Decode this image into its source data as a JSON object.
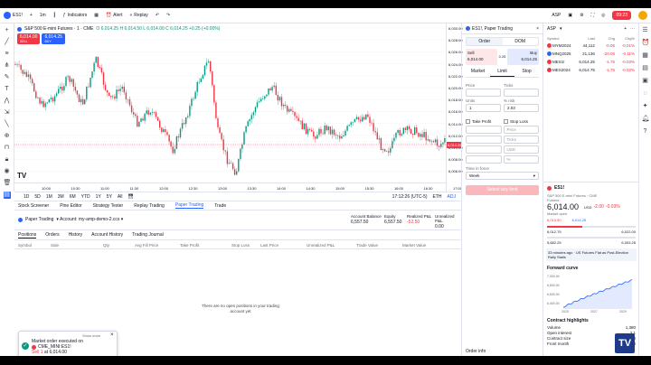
{
  "topbar": {
    "symbol": "ES1!",
    "interval": "1m",
    "indicators": "Indicators",
    "alert": "Alert",
    "replay": "Replay",
    "layout": "ASP",
    "time_pill": "09:23"
  },
  "chart": {
    "title": "S&P 500 E-mini Futures · 1 · CME",
    "ohlc": "O 6,014.25 H 6,014.50 L 6,014.00 C 6,014.25 +0.25 (+0.00%)",
    "sell_price": "6,014.00",
    "buy_price": "6,014.25",
    "sell_label": "SELL",
    "buy_label": "BUY",
    "price_ticks": [
      "6,030.00",
      "6,028.00",
      "6,026.00",
      "6,024.00",
      "6,022.00",
      "6,020.00",
      "6,018.00",
      "6,016.00",
      "6,014.00",
      "6,012.00",
      "6,010.00",
      "6,008.00",
      "6,006.00"
    ],
    "last_price": "6,014.25",
    "time_ticks": [
      "10:00",
      "10:30",
      "11:00",
      "11:30",
      "12:00",
      "12:30",
      "13:00",
      "13:30",
      "14:00",
      "14:30",
      "15:00",
      "15:30",
      "16:00",
      "16:30",
      "17:00"
    ],
    "logo": "TV"
  },
  "rangebar": {
    "ranges": [
      "1D",
      "5D",
      "1M",
      "3M",
      "6M",
      "YTD",
      "1Y",
      "5Y",
      "All"
    ],
    "clock": "17:12:26 (UTC-5)",
    "session": "ETH",
    "adj": "ADJ"
  },
  "bottom_tabs": [
    "Stock Screener",
    "Pine Editor",
    "Strategy Tester",
    "Replay Trading",
    "Paper Trading",
    "Trade"
  ],
  "account": {
    "broker": "Paper Trading",
    "account_name": "Account: my-amp-demo-2.ccs",
    "balance_label": "Account Balance",
    "balance": "6,557.50",
    "equity_label": "Equity",
    "equity": "6,557.50",
    "realized_label": "Realized P&L",
    "realized": "-52.50",
    "unrealized_label": "Unrealized P&L",
    "unrealized": "0.00"
  },
  "sub_tabs": [
    "Positions",
    "Orders",
    "History",
    "Account History",
    "Trading Journal"
  ],
  "columns": [
    "Symbol",
    "Side",
    "Qty",
    "Avg Fill Price",
    "Take Profit",
    "Stop Loss",
    "Last Price",
    "Unrealized P&L",
    "Trade Value",
    "Market Value"
  ],
  "empty_message": "There are no open positions in your trading account yet",
  "toast": {
    "title": "Market order executed on",
    "symbol": "CME_MINI:ES1!",
    "detail_side": "Sell 1",
    "detail_rest": "at 6,014.00",
    "show_more": "Show more"
  },
  "order": {
    "title": "ES1!, Paper Trading",
    "seg": [
      "Order",
      "DOM"
    ],
    "sell_label": "Sell",
    "sell_price": "6,014.00",
    "spread": "0.25",
    "buy_label": "Buy",
    "buy_price": "6,014.25",
    "types": [
      "Market",
      "Limit",
      "Stop"
    ],
    "price_label": "Price",
    "price_value": "",
    "ticks_label": "Ticks",
    "units_label": "Units",
    "units_value": "1",
    "risk_label": "% risk",
    "risk_value": "2.03",
    "take_profit": "Take Profit",
    "stop_loss": "Stop Loss",
    "tp_fields": [
      "Price",
      "Ticks",
      "USD",
      "%"
    ],
    "tif_label": "Time in force",
    "tif_value": "Week",
    "sell_button": "Select any limit",
    "order_info": "Order info"
  },
  "watchlist": {
    "title": "ASP",
    "cols": [
      "Symbol",
      "Last",
      "Chg",
      "Chg%"
    ],
    "rows": [
      {
        "sym": "MYM2024",
        "last": "44,112",
        "chg": "-0.05",
        "pct": "-0.01%"
      },
      {
        "sym": "MNQ2025",
        "last": "21,136",
        "chg": "-20.05",
        "pct": "-0.11%"
      },
      {
        "sym": "MES1!",
        "last": "6,014.25",
        "chg": "-1.75",
        "pct": "-0.03%"
      },
      {
        "sym": "MES2024",
        "last": "6,014.75",
        "chg": "-1.75",
        "pct": "-0.03%"
      }
    ]
  },
  "detail": {
    "symbol": "ES1!",
    "name": "S&P 500 E-mini Futures · CME",
    "market": "Futures",
    "price": "6,014.00",
    "usd": "USD",
    "chg": "-2.00",
    "pct": "-0.03%",
    "status": "Market open",
    "bid": "6,013.50",
    "ask": "6,014.25",
    "day_low": "6,012.75",
    "day_high": "6,022.00",
    "range_low": "5,682.25",
    "range_high": "6,053.25",
    "news": "33 minutes ago · US Futures Flat as Post-Election Rally Stalls",
    "forward_title": "Forward curve",
    "curve_y": [
      "7,000.00",
      "6,800.00",
      "6,600.00",
      "6,400.00"
    ],
    "curve_x": [
      "2025",
      "2027",
      "2029"
    ],
    "contract_title": "Contract highlights",
    "kv": [
      {
        "k": "Volume",
        "v": "1,380"
      },
      {
        "k": "Open interest",
        "v": "2,1"
      },
      {
        "k": "Contract size",
        "v": "50"
      },
      {
        "k": "Front month",
        "v": "ESZ2024"
      }
    ]
  }
}
